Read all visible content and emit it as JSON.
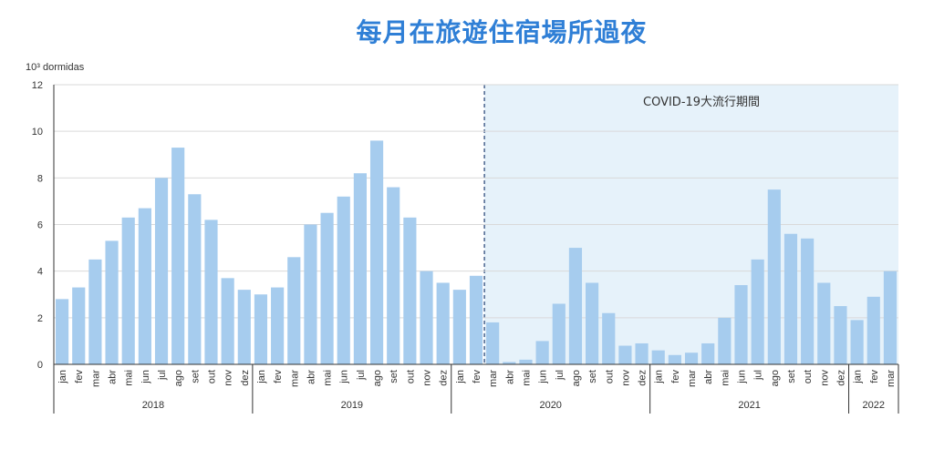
{
  "title": "每月在旅遊住宿場所過夜",
  "chart_data": {
    "type": "bar",
    "ylabel": "10³ dormidas",
    "ylim": [
      0,
      12
    ],
    "yticks": [
      0,
      2,
      4,
      6,
      8,
      10,
      12
    ],
    "grid": true,
    "bar_color": "#a6ccee",
    "shade_color": "#e6f2fa",
    "annotation": "COVID-19大流行期間",
    "shade_start_label": "mar 2020",
    "categories": [
      "jan",
      "fev",
      "mar",
      "abr",
      "mai",
      "jun",
      "jul",
      "ago",
      "set",
      "out",
      "nov",
      "dez",
      "jan",
      "fev",
      "mar",
      "abr",
      "mai",
      "jun",
      "jul",
      "ago",
      "set",
      "out",
      "nov",
      "dez",
      "jan",
      "fev",
      "mar",
      "abr",
      "mai",
      "jun",
      "jul",
      "ago",
      "set",
      "out",
      "nov",
      "dez",
      "jan",
      "fev",
      "mar",
      "abr",
      "mai",
      "jun",
      "jul",
      "ago",
      "set",
      "out",
      "nov",
      "dez",
      "jan",
      "fev",
      "mar"
    ],
    "years": [
      {
        "label": "2018",
        "count": 12
      },
      {
        "label": "2019",
        "count": 12
      },
      {
        "label": "2020",
        "count": 12
      },
      {
        "label": "2021",
        "count": 12
      },
      {
        "label": "2022",
        "count": 3
      }
    ],
    "values": [
      2.8,
      3.3,
      4.5,
      5.3,
      6.3,
      6.7,
      8.0,
      9.3,
      7.3,
      6.2,
      3.7,
      3.2,
      3.0,
      3.3,
      4.6,
      6.0,
      6.5,
      7.2,
      8.2,
      9.6,
      7.6,
      6.3,
      4.0,
      3.5,
      3.2,
      3.8,
      1.8,
      0.1,
      0.2,
      1.0,
      2.6,
      5.0,
      3.5,
      2.2,
      0.8,
      0.9,
      0.6,
      0.4,
      0.5,
      0.9,
      2.0,
      3.4,
      4.5,
      7.5,
      5.6,
      5.4,
      3.5,
      2.5,
      1.9,
      2.9,
      4.0
    ]
  }
}
